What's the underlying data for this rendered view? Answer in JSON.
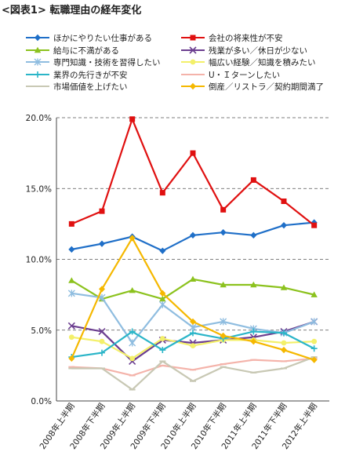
{
  "page_title": "<図表1> 転職理由の経年変化",
  "chart_data": {
    "type": "line",
    "title": "<図表1> 転職理由の経年変化",
    "xlabel": "",
    "ylabel": "",
    "ylim": [
      0,
      20
    ],
    "grid": true,
    "legend_placement": "top",
    "categories": [
      "2008年上半期",
      "2008年下半期",
      "2009年上半期",
      "2009年下半期",
      "2010年上半期",
      "2010年下半期",
      "2011年上半期",
      "2011年下半期",
      "2012年上半期"
    ],
    "yticks": [
      "0.0%",
      "5.0%",
      "10.0%",
      "15.0%",
      "20.0%"
    ],
    "series": [
      {
        "name": "ほかにやりたい仕事がある",
        "color": "#1f6fc8",
        "marker": "diamond",
        "values": [
          10.7,
          11.1,
          11.6,
          10.6,
          11.7,
          11.9,
          11.7,
          12.4,
          12.6
        ]
      },
      {
        "name": "会社の将来性が不安",
        "color": "#e01010",
        "marker": "square",
        "values": [
          12.5,
          13.4,
          19.9,
          14.7,
          17.5,
          13.5,
          15.6,
          14.1,
          12.4
        ]
      },
      {
        "name": "給与に不満がある",
        "color": "#8cc21e",
        "marker": "triangle",
        "values": [
          8.5,
          7.2,
          7.8,
          7.2,
          8.6,
          8.2,
          8.2,
          8.0,
          7.5
        ]
      },
      {
        "name": "残業が多い／休日が少ない",
        "color": "#6b3d8f",
        "marker": "cross",
        "values": [
          5.3,
          4.9,
          2.8,
          4.3,
          4.1,
          4.3,
          4.5,
          4.9,
          5.6
        ]
      },
      {
        "name": "専門知識・技術を習得したい",
        "color": "#8fbde0",
        "marker": "asterisk",
        "values": [
          7.6,
          7.3,
          4.1,
          6.8,
          5.2,
          5.6,
          5.1,
          4.8,
          5.6
        ]
      },
      {
        "name": "幅広い経験／知識を積みたい",
        "color": "#f3f06a",
        "marker": "dot",
        "values": [
          4.5,
          4.2,
          3.0,
          4.4,
          3.9,
          4.3,
          4.3,
          4.1,
          4.2
        ]
      },
      {
        "name": "業界の先行きが不安",
        "color": "#2bb5c8",
        "marker": "plus",
        "values": [
          3.1,
          3.4,
          4.9,
          3.6,
          4.8,
          4.4,
          4.9,
          4.8,
          3.7
        ]
      },
      {
        "name": "U・Ｉターンしたい",
        "color": "#f4b3aa",
        "marker": "dash",
        "values": [
          2.4,
          2.3,
          1.8,
          2.5,
          2.2,
          2.6,
          2.9,
          2.8,
          3.0
        ]
      },
      {
        "name": "市場価値を上げたい",
        "color": "#c8c8b4",
        "marker": "dash",
        "values": [
          2.3,
          2.3,
          0.8,
          2.8,
          1.4,
          2.4,
          2.0,
          2.3,
          3.1
        ]
      },
      {
        "name": "倒産／リストラ／契約期間満了",
        "color": "#f5b800",
        "marker": "diamond",
        "values": [
          3.0,
          7.9,
          11.5,
          7.6,
          5.6,
          4.6,
          4.2,
          3.6,
          2.9
        ]
      }
    ]
  }
}
